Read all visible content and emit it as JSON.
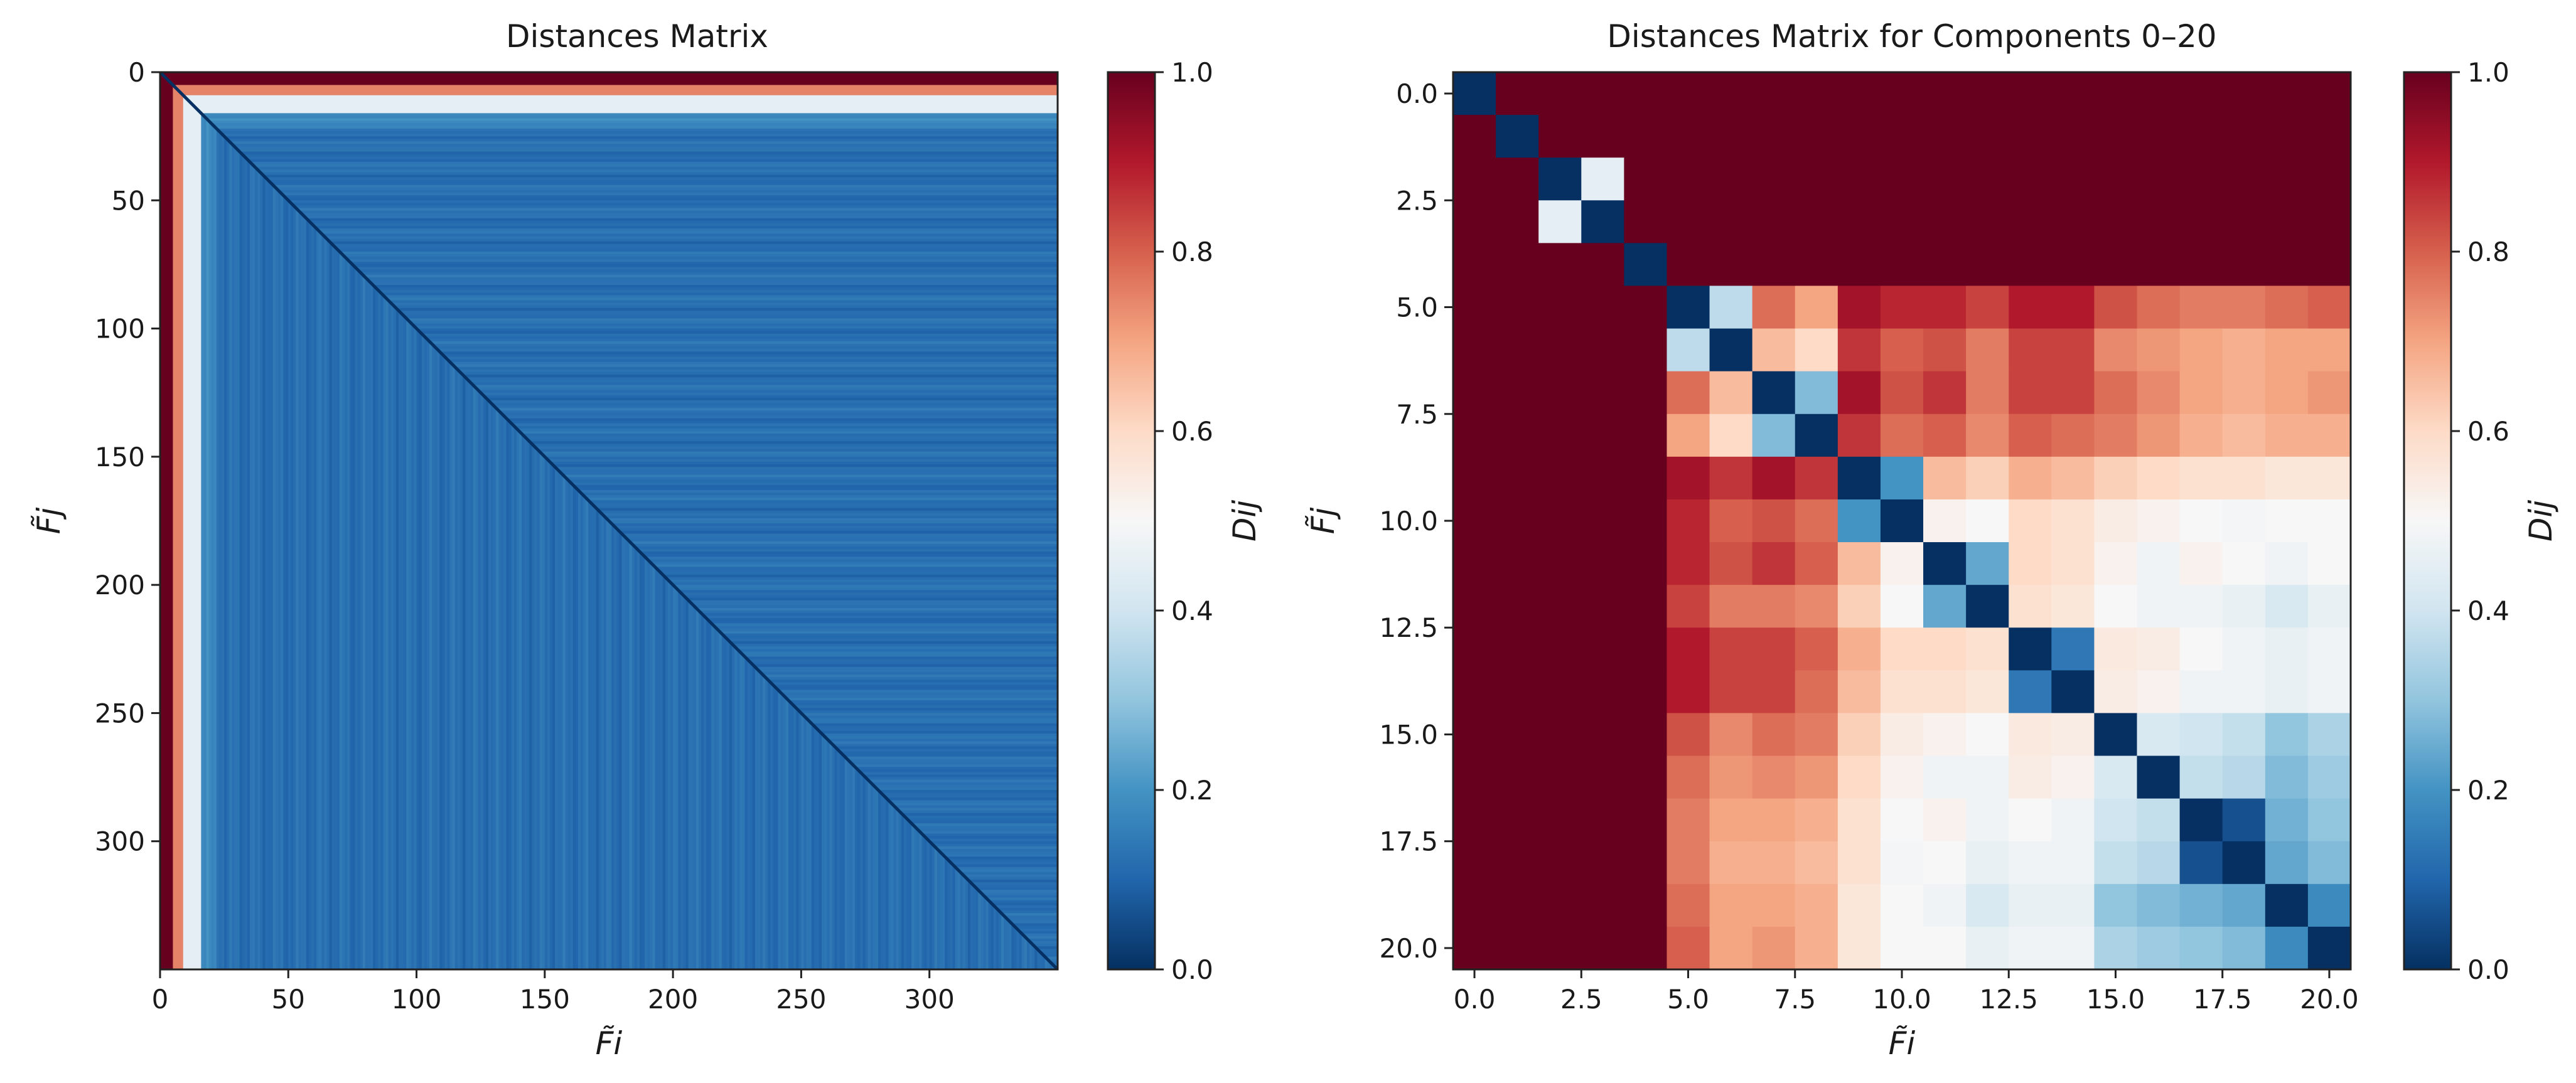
{
  "figure": {
    "colormap": "RdBu_r",
    "colormap_stops": [
      "#053061",
      "#2166ac",
      "#4393c3",
      "#92c5de",
      "#d1e5f0",
      "#f7f7f7",
      "#fddbc7",
      "#f4a582",
      "#d6604d",
      "#b2182b",
      "#67001f"
    ]
  },
  "chart_data": [
    {
      "type": "heatmap",
      "title": "Distances Matrix",
      "xlabel": "F̃i",
      "ylabel": "F̃j",
      "colorbar_label": "Dij",
      "n": 350,
      "xlim": [
        0,
        350
      ],
      "ylim": [
        350,
        0
      ],
      "xticks": [
        0,
        50,
        100,
        150,
        200,
        250,
        300
      ],
      "xtick_labels": [
        "0",
        "50",
        "100",
        "150",
        "200",
        "250",
        "300"
      ],
      "yticks": [
        0,
        50,
        100,
        150,
        200,
        250,
        300
      ],
      "ytick_labels": [
        "0",
        "50",
        "100",
        "150",
        "200",
        "250",
        "300"
      ],
      "colorbar_ticks": [
        0.0,
        0.2,
        0.4,
        0.6,
        0.8,
        1.0
      ],
      "colorbar_tick_labels": [
        "0.0",
        "0.2",
        "0.4",
        "0.6",
        "0.8",
        "1.0"
      ],
      "vmin": 0.0,
      "vmax": 1.0,
      "description_of_values": {
        "diagonal": 0.0,
        "component_0_to_4_rows_cols": 1.0,
        "component_5_to_8_band": 0.75,
        "component_9_to_15_band": 0.45,
        "bulk_off_diagonal": 0.12
      }
    },
    {
      "type": "heatmap",
      "title": "Distances Matrix for Components 0–20",
      "xlabel": "F̃i",
      "ylabel": "F̃j",
      "colorbar_label": "Dij",
      "xlim": [
        -0.5,
        20.5
      ],
      "ylim": [
        20.5,
        -0.5
      ],
      "xticks": [
        0.0,
        2.5,
        5.0,
        7.5,
        10.0,
        12.5,
        15.0,
        17.5,
        20.0
      ],
      "xtick_labels": [
        "0.0",
        "2.5",
        "5.0",
        "7.5",
        "10.0",
        "12.5",
        "15.0",
        "17.5",
        "20.0"
      ],
      "yticks": [
        0.0,
        2.5,
        5.0,
        7.5,
        10.0,
        12.5,
        15.0,
        17.5,
        20.0
      ],
      "ytick_labels": [
        "0.0",
        "2.5",
        "5.0",
        "7.5",
        "10.0",
        "12.5",
        "15.0",
        "17.5",
        "20.0"
      ],
      "colorbar_ticks": [
        0.0,
        0.2,
        0.4,
        0.6,
        0.8,
        1.0
      ],
      "colorbar_tick_labels": [
        "0.0",
        "0.2",
        "0.4",
        "0.6",
        "0.8",
        "1.0"
      ],
      "vmin": 0.0,
      "vmax": 1.0,
      "matrix": [
        [
          0.0,
          1.0,
          1.0,
          1.0,
          1.0,
          1.0,
          1.0,
          1.0,
          1.0,
          1.0,
          1.0,
          1.0,
          1.0,
          1.0,
          1.0,
          1.0,
          1.0,
          1.0,
          1.0,
          1.0,
          1.0
        ],
        [
          1.0,
          0.0,
          1.0,
          1.0,
          1.0,
          1.0,
          1.0,
          1.0,
          1.0,
          1.0,
          1.0,
          1.0,
          1.0,
          1.0,
          1.0,
          1.0,
          1.0,
          1.0,
          1.0,
          1.0,
          1.0
        ],
        [
          1.0,
          1.0,
          0.0,
          0.45,
          1.0,
          1.0,
          1.0,
          1.0,
          1.0,
          1.0,
          1.0,
          1.0,
          1.0,
          1.0,
          1.0,
          1.0,
          1.0,
          1.0,
          1.0,
          1.0,
          1.0
        ],
        [
          1.0,
          1.0,
          0.45,
          0.0,
          1.0,
          1.0,
          1.0,
          1.0,
          1.0,
          1.0,
          1.0,
          1.0,
          1.0,
          1.0,
          1.0,
          1.0,
          1.0,
          1.0,
          1.0,
          1.0,
          1.0
        ],
        [
          1.0,
          1.0,
          1.0,
          1.0,
          0.0,
          1.0,
          1.0,
          1.0,
          1.0,
          1.0,
          1.0,
          1.0,
          1.0,
          1.0,
          1.0,
          1.0,
          1.0,
          1.0,
          1.0,
          1.0,
          1.0
        ],
        [
          1.0,
          1.0,
          1.0,
          1.0,
          1.0,
          0.0,
          0.37,
          0.78,
          0.7,
          0.92,
          0.88,
          0.88,
          0.84,
          0.9,
          0.9,
          0.82,
          0.78,
          0.76,
          0.76,
          0.78,
          0.8
        ],
        [
          1.0,
          1.0,
          1.0,
          1.0,
          1.0,
          0.37,
          0.0,
          0.66,
          0.6,
          0.86,
          0.8,
          0.82,
          0.76,
          0.84,
          0.84,
          0.74,
          0.72,
          0.7,
          0.68,
          0.7,
          0.7
        ],
        [
          1.0,
          1.0,
          1.0,
          1.0,
          1.0,
          0.78,
          0.66,
          0.0,
          0.28,
          0.92,
          0.82,
          0.86,
          0.76,
          0.84,
          0.84,
          0.78,
          0.74,
          0.7,
          0.68,
          0.7,
          0.72
        ],
        [
          1.0,
          1.0,
          1.0,
          1.0,
          1.0,
          0.7,
          0.6,
          0.28,
          0.0,
          0.86,
          0.78,
          0.8,
          0.74,
          0.8,
          0.78,
          0.76,
          0.72,
          0.68,
          0.66,
          0.68,
          0.68
        ],
        [
          1.0,
          1.0,
          1.0,
          1.0,
          1.0,
          0.92,
          0.86,
          0.92,
          0.86,
          0.0,
          0.2,
          0.66,
          0.62,
          0.68,
          0.66,
          0.62,
          0.6,
          0.58,
          0.58,
          0.56,
          0.56
        ],
        [
          1.0,
          1.0,
          1.0,
          1.0,
          1.0,
          0.88,
          0.8,
          0.82,
          0.78,
          0.2,
          0.0,
          0.52,
          0.5,
          0.6,
          0.58,
          0.54,
          0.52,
          0.5,
          0.49,
          0.5,
          0.5
        ],
        [
          1.0,
          1.0,
          1.0,
          1.0,
          1.0,
          0.88,
          0.82,
          0.86,
          0.8,
          0.66,
          0.52,
          0.0,
          0.24,
          0.6,
          0.58,
          0.52,
          0.48,
          0.52,
          0.5,
          0.48,
          0.5
        ],
        [
          1.0,
          1.0,
          1.0,
          1.0,
          1.0,
          0.84,
          0.76,
          0.76,
          0.74,
          0.62,
          0.5,
          0.24,
          0.0,
          0.58,
          0.56,
          0.5,
          0.48,
          0.48,
          0.46,
          0.42,
          0.46
        ],
        [
          1.0,
          1.0,
          1.0,
          1.0,
          1.0,
          0.9,
          0.84,
          0.84,
          0.8,
          0.68,
          0.6,
          0.6,
          0.58,
          0.0,
          0.14,
          0.55,
          0.54,
          0.5,
          0.48,
          0.46,
          0.48
        ],
        [
          1.0,
          1.0,
          1.0,
          1.0,
          1.0,
          0.9,
          0.84,
          0.84,
          0.78,
          0.66,
          0.58,
          0.58,
          0.56,
          0.14,
          0.0,
          0.54,
          0.52,
          0.48,
          0.48,
          0.46,
          0.48
        ],
        [
          1.0,
          1.0,
          1.0,
          1.0,
          1.0,
          0.82,
          0.74,
          0.78,
          0.76,
          0.62,
          0.54,
          0.52,
          0.5,
          0.55,
          0.54,
          0.0,
          0.42,
          0.4,
          0.38,
          0.3,
          0.34
        ],
        [
          1.0,
          1.0,
          1.0,
          1.0,
          1.0,
          0.78,
          0.72,
          0.74,
          0.72,
          0.6,
          0.52,
          0.48,
          0.48,
          0.54,
          0.52,
          0.42,
          0.0,
          0.38,
          0.36,
          0.28,
          0.32
        ],
        [
          1.0,
          1.0,
          1.0,
          1.0,
          1.0,
          0.76,
          0.7,
          0.7,
          0.68,
          0.58,
          0.5,
          0.52,
          0.48,
          0.5,
          0.48,
          0.4,
          0.38,
          0.0,
          0.06,
          0.26,
          0.3
        ],
        [
          1.0,
          1.0,
          1.0,
          1.0,
          1.0,
          0.76,
          0.68,
          0.68,
          0.66,
          0.58,
          0.49,
          0.5,
          0.46,
          0.48,
          0.48,
          0.38,
          0.36,
          0.06,
          0.0,
          0.24,
          0.28
        ],
        [
          1.0,
          1.0,
          1.0,
          1.0,
          1.0,
          0.78,
          0.7,
          0.7,
          0.68,
          0.56,
          0.5,
          0.48,
          0.42,
          0.46,
          0.46,
          0.3,
          0.28,
          0.26,
          0.24,
          0.0,
          0.18
        ],
        [
          1.0,
          1.0,
          1.0,
          1.0,
          1.0,
          0.8,
          0.7,
          0.72,
          0.68,
          0.56,
          0.5,
          0.5,
          0.46,
          0.48,
          0.48,
          0.34,
          0.32,
          0.3,
          0.28,
          0.18,
          0.0
        ]
      ]
    }
  ]
}
